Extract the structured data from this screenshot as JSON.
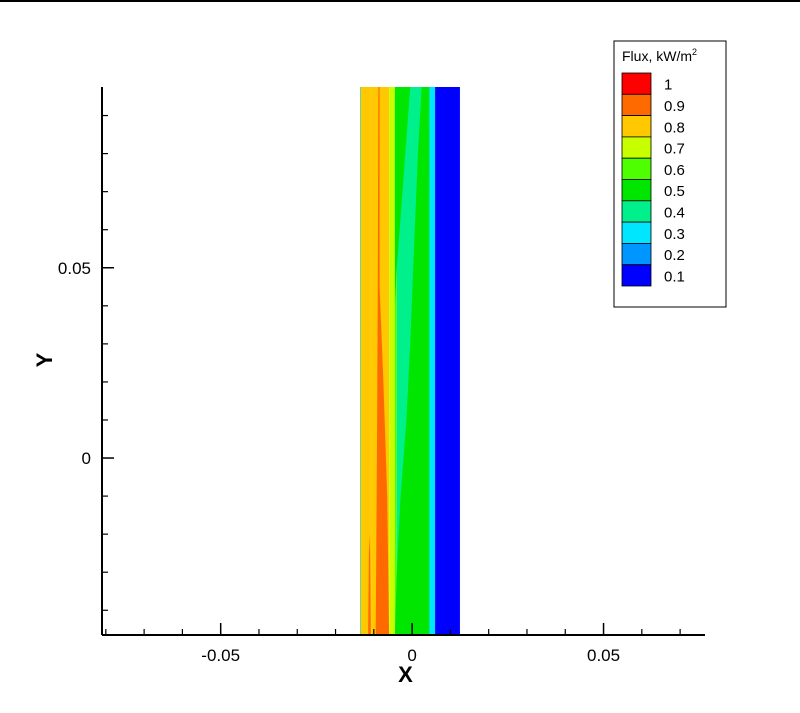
{
  "chart_data": {
    "type": "heatmap",
    "xlabel": "X",
    "ylabel": "Y",
    "xlim": [
      -0.081,
      0.0765
    ],
    "ylim": [
      -0.0465,
      0.0975
    ],
    "x_ticks": [
      {
        "value": -0.05,
        "label": "-0.05"
      },
      {
        "value": 0,
        "label": "0"
      },
      {
        "value": 0.05,
        "label": "0.05"
      }
    ],
    "y_ticks": [
      {
        "value": 0,
        "label": "0"
      },
      {
        "value": 0.05,
        "label": "0.05"
      }
    ],
    "x_minor_step": 0.01,
    "y_minor_step": 0.01,
    "legend": {
      "title_text": "Flux, kW/m",
      "title_sup": "2",
      "placement": "top-right",
      "levels": [
        {
          "label": "1",
          "color": "#ff0000"
        },
        {
          "label": "0.9",
          "color": "#ff6a00"
        },
        {
          "label": "0.8",
          "color": "#ffc800"
        },
        {
          "label": "0.7",
          "color": "#c8ff00"
        },
        {
          "label": "0.6",
          "color": "#4dff00"
        },
        {
          "label": "0.5",
          "color": "#00e600"
        },
        {
          "label": "0.4",
          "color": "#00f08c"
        },
        {
          "label": "0.3",
          "color": "#00e6ff"
        },
        {
          "label": "0.2",
          "color": "#0096ff"
        },
        {
          "label": "0.1",
          "color": "#0000ff"
        }
      ]
    },
    "domain": {
      "x": [
        -0.0135,
        0.0125
      ],
      "y": [
        -0.0465,
        0.0975
      ]
    },
    "bands": [
      {
        "x0": -0.0135,
        "x1": -0.0133,
        "color": "#00aa00"
      },
      {
        "x0": -0.0133,
        "x1": -0.0105,
        "color": "#ffc800"
      },
      {
        "x0": -0.0105,
        "x1": -0.006,
        "color": "#ffc800"
      },
      {
        "x0": -0.006,
        "x1": -0.0045,
        "color": "#c8ff00"
      },
      {
        "x0": -0.0045,
        "x1": -0.004,
        "color": "#4dff00"
      },
      {
        "x0": -0.004,
        "x1": 0.004,
        "color": "#00f08c"
      },
      {
        "x0": 0.004,
        "x1": 0.006,
        "color": "#00e6ff"
      },
      {
        "x0": 0.006,
        "x1": 0.0125,
        "color": "#0000ff"
      }
    ],
    "regions": [
      {
        "color": "#ff6a00",
        "points": [
          [
            -0.0095,
            -0.0465
          ],
          [
            -0.006,
            -0.0465
          ],
          [
            -0.0065,
            -0.01
          ],
          [
            -0.0075,
            0.02
          ],
          [
            -0.0085,
            0.045
          ],
          [
            -0.0085,
            0.0975
          ],
          [
            -0.0088,
            0.0975
          ],
          [
            -0.009,
            0.04
          ],
          [
            -0.0092,
            0.0
          ]
        ]
      },
      {
        "color": "#ff6a00",
        "points": [
          [
            -0.0115,
            -0.0465
          ],
          [
            -0.0108,
            -0.0465
          ],
          [
            -0.011,
            -0.02
          ],
          [
            -0.0113,
            -0.025
          ]
        ]
      },
      {
        "color": "#00e600",
        "points": [
          [
            -0.0045,
            -0.0465
          ],
          [
            0.0045,
            -0.0465
          ],
          [
            0.0045,
            0.0975
          ],
          [
            0.0025,
            0.0975
          ],
          [
            0.0015,
            0.08
          ],
          [
            0.0005,
            0.055
          ],
          [
            -0.0005,
            0.03
          ],
          [
            -0.0015,
            0.01
          ],
          [
            -0.003,
            -0.01
          ],
          [
            -0.004,
            -0.03
          ]
        ]
      },
      {
        "color": "#00e600",
        "points": [
          [
            -0.0045,
            0.0975
          ],
          [
            -0.0005,
            0.0975
          ],
          [
            -0.0025,
            0.07
          ],
          [
            -0.004,
            0.05
          ],
          [
            -0.0045,
            0.04
          ]
        ]
      }
    ]
  }
}
